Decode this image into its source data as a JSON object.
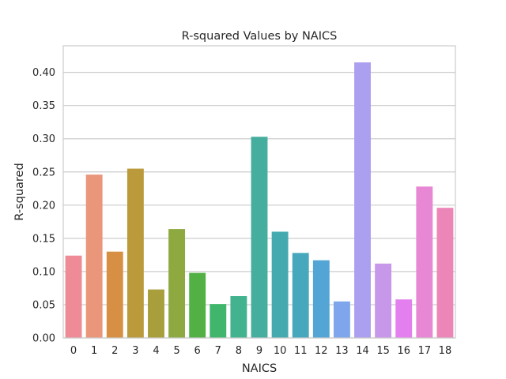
{
  "chart_data": {
    "type": "bar",
    "title": "R-squared Values by NAICS",
    "xlabel": "NAICS",
    "ylabel": "R-squared",
    "categories": [
      "0",
      "1",
      "2",
      "3",
      "4",
      "5",
      "6",
      "7",
      "8",
      "9",
      "10",
      "11",
      "12",
      "13",
      "14",
      "15",
      "16",
      "17",
      "18"
    ],
    "values": [
      0.124,
      0.246,
      0.13,
      0.255,
      0.073,
      0.164,
      0.098,
      0.051,
      0.063,
      0.303,
      0.16,
      0.128,
      0.117,
      0.055,
      0.415,
      0.112,
      0.058,
      0.228,
      0.196
    ],
    "colors": [
      "#ee8b97",
      "#e9967a",
      "#d79043",
      "#ba9a3b",
      "#a99e3c",
      "#8da940",
      "#52b044",
      "#40b56c",
      "#43b28e",
      "#46ae9e",
      "#45aab0",
      "#46a7bd",
      "#53a5d6",
      "#7fa6ed",
      "#ab9fef",
      "#c797e9",
      "#e37fee",
      "#e887d4",
      "#ec86b9"
    ],
    "ylim": [
      0,
      0.44
    ],
    "yticks": [
      0.0,
      0.05,
      0.1,
      0.15,
      0.2,
      0.25,
      0.3,
      0.35,
      0.4
    ],
    "ytick_labels": [
      "0.00",
      "0.05",
      "0.10",
      "0.15",
      "0.20",
      "0.25",
      "0.30",
      "0.35",
      "0.40"
    ],
    "grid": "y"
  }
}
